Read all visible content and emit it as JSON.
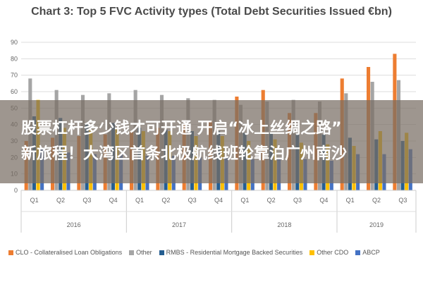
{
  "chart_data": {
    "type": "bar",
    "title": "Chart 3: Top 5 FVC Activity types (Total Debt Securities Issued €bn)",
    "ylim": [
      0,
      90
    ],
    "yticks": [
      0,
      10,
      20,
      30,
      40,
      50,
      60,
      70,
      80,
      90
    ],
    "grid": true,
    "legend_position": "bottom",
    "categories": [
      "Q1",
      "Q2",
      "Q3",
      "Q4",
      "Q1",
      "Q2",
      "Q3",
      "Q4",
      "Q1",
      "Q2",
      "Q3",
      "Q4",
      "Q1",
      "Q2",
      "Q3"
    ],
    "groups": [
      {
        "label": "2016",
        "count": 4
      },
      {
        "label": "2017",
        "count": 4
      },
      {
        "label": "2018",
        "count": 4
      },
      {
        "label": "2019",
        "count": 3
      }
    ],
    "series": [
      {
        "name": "CLO - Collateralised Loan Obligations",
        "color": "#ED7D31",
        "values": [
          30,
          32,
          33,
          34,
          36,
          38,
          40,
          42,
          57,
          61,
          47,
          47,
          68,
          75,
          83
        ]
      },
      {
        "name": "Other",
        "color": "#A5A5A5",
        "values": [
          68,
          61,
          58,
          59,
          61,
          58,
          56,
          55,
          52,
          54,
          55,
          54,
          59,
          66,
          67
        ]
      },
      {
        "name": "RMBS - Residential Mortgage Backed Securities",
        "color": "#255E91",
        "values": [
          45,
          44,
          40,
          41,
          38,
          37,
          36,
          36,
          35,
          35,
          34,
          34,
          32,
          31,
          30
        ]
      },
      {
        "name": "Other CDO",
        "color": "#FFC000",
        "values": [
          55,
          38,
          37,
          38,
          36,
          36,
          33,
          33,
          30,
          31,
          29,
          28,
          27,
          36,
          35
        ]
      },
      {
        "name": "ABCP",
        "color": "#4472C4",
        "values": [
          25,
          23,
          22,
          22,
          21,
          21,
          20,
          20,
          19,
          19,
          19,
          18,
          22,
          22,
          25
        ]
      }
    ]
  },
  "overlay": {
    "line1": "股票杠杆多少钱才可开通 开启“冰上丝绸之路”",
    "line2": "新旅程！大湾区首条北极航线班轮靠泊广州南沙"
  }
}
